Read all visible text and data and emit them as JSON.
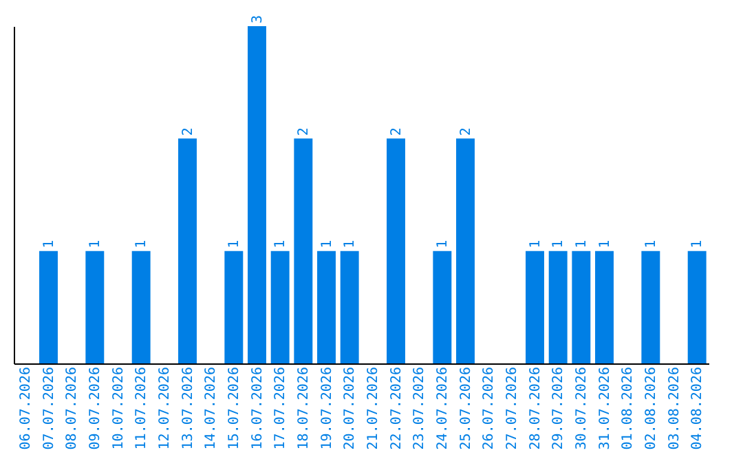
{
  "chart_data": {
    "type": "bar",
    "categories": [
      "06.07.2026",
      "07.07.2026",
      "08.07.2026",
      "09.07.2026",
      "10.07.2026",
      "11.07.2026",
      "12.07.2026",
      "13.07.2026",
      "14.07.2026",
      "15.07.2026",
      "16.07.2026",
      "17.07.2026",
      "18.07.2026",
      "19.07.2026",
      "20.07.2026",
      "21.07.2026",
      "22.07.2026",
      "23.07.2026",
      "24.07.2026",
      "25.07.2026",
      "26.07.2026",
      "27.07.2026",
      "28.07.2026",
      "29.07.2026",
      "30.07.2026",
      "31.07.2026",
      "01.08.2026",
      "02.08.2026",
      "03.08.2026",
      "04.08.2026"
    ],
    "values": [
      0,
      1,
      0,
      1,
      0,
      1,
      0,
      2,
      0,
      1,
      3,
      1,
      2,
      1,
      1,
      0,
      2,
      0,
      1,
      2,
      0,
      0,
      1,
      1,
      1,
      1,
      0,
      1,
      0,
      1
    ],
    "value_labels": [
      null,
      "1",
      null,
      "1",
      null,
      "1",
      null,
      "2",
      null,
      "1",
      "3",
      "1",
      "2",
      "1",
      "1",
      null,
      "2",
      null,
      "1",
      "2",
      null,
      null,
      "1",
      "1",
      "1",
      "1",
      null,
      "1",
      null,
      "1"
    ],
    "color": "#007fe5",
    "tick_labels": "x",
    "grid": false
  }
}
